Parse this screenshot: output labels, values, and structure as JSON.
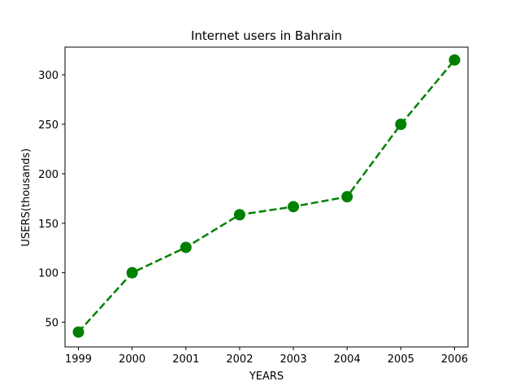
{
  "chart_data": {
    "type": "line",
    "title": "Internet users in Bahrain",
    "xlabel": "YEARS",
    "ylabel": "USERS(thousands)",
    "x": [
      1999,
      2000,
      2001,
      2002,
      2003,
      2004,
      2005,
      2006
    ],
    "series": [
      {
        "values": [
          40,
          100,
          125.6,
          158.6,
          166.8,
          176.8,
          250,
          315
        ],
        "color": "#008000",
        "line_style": "dashed",
        "marker": "circle"
      }
    ],
    "xlim": [
      1998.75,
      2006.25
    ],
    "ylim": [
      25,
      328
    ],
    "x_ticks": [
      "1999",
      "2000",
      "2001",
      "2002",
      "2003",
      "2004",
      "2005",
      "2006"
    ],
    "y_ticks": [
      "50",
      "100",
      "150",
      "200",
      "250",
      "300"
    ],
    "y_tick_values": [
      50,
      100,
      150,
      200,
      250,
      300
    ],
    "grid": false,
    "legend": "none"
  }
}
